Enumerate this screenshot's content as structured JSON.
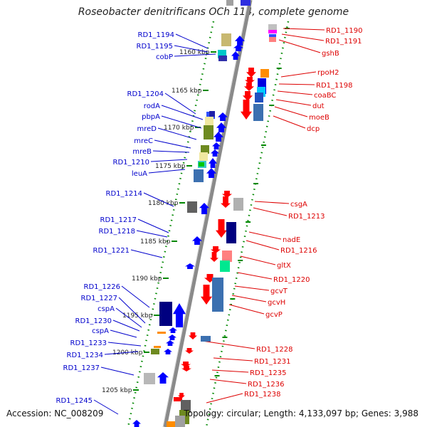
{
  "title": "Roseobacter denitrificans OCh 114, complete genome",
  "accession": "Accession: NC_008209",
  "topology": "Topology: circular; Length: 4,133,097 bp; Genes: 3,988",
  "colors": {
    "plus_label": "#0000cc",
    "minus_label": "#dd0000",
    "plus_gene": "#0000ff",
    "minus_gene": "#ff0000",
    "tick": "#008800",
    "backbone": "#888888"
  },
  "kbp_labels": [
    "1160 kbp",
    "1165 kbp",
    "1170 kbp",
    "1175 kbp",
    "1180 kbp",
    "1185 kbp",
    "1190 kbp",
    "1195 kbp",
    "1200 kbp",
    "1205 kbp"
  ],
  "left_labels": [
    "RD1_1194",
    "RD1_1195",
    "cobP",
    "RD1_1204",
    "rodA",
    "pbpA",
    "mreD",
    "mreC",
    "mreB",
    "RD1_1210",
    "leuA",
    "RD1_1214",
    "RD1_1217",
    "RD1_1218",
    "RD1_1221",
    "RD1_1226",
    "RD1_1227",
    "cspA",
    "RD1_1230",
    "cspA",
    "RD1_1233",
    "RD1_1234",
    "RD1_1237",
    "RD1_1245"
  ],
  "right_labels": [
    "RD1_1190",
    "RD1_1191",
    "gshB",
    "rpoH2",
    "RD1_1198",
    "coaBC",
    "dut",
    "moeB",
    "dcp",
    "csgA",
    "RD1_1213",
    "nadE",
    "RD1_1216",
    "gltX",
    "RD1_1220",
    "gcvT",
    "gcvH",
    "gcvP",
    "RD1_1228",
    "RD1_1231",
    "RD1_1235",
    "RD1_1236",
    "RD1_1238"
  ]
}
